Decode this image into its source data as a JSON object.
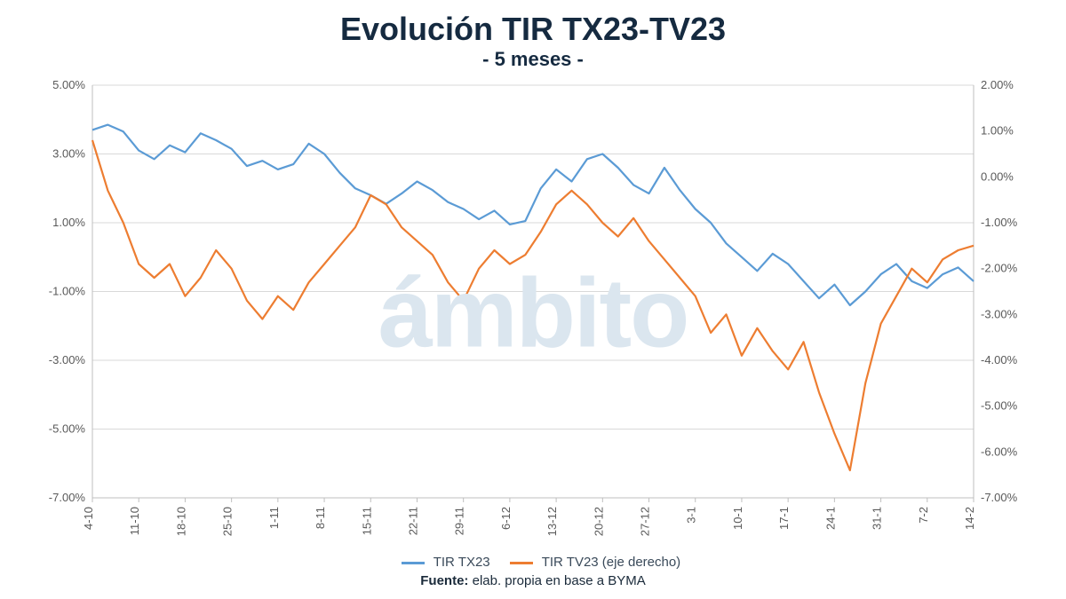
{
  "title": "Evolución TIR TX23-TV23",
  "subtitle": "- 5 meses -",
  "title_color": "#152a40",
  "title_fontsize": 36,
  "subtitle_fontsize": 22,
  "source_label": "Fuente:",
  "source_text": "elab. propia en base a BYMA",
  "watermark_text": "ámbito",
  "watermark_color": "#dbe6ef",
  "chart": {
    "type": "line-dual-axis",
    "background_color": "#ffffff",
    "grid_color": "#d9d9d9",
    "axis_color": "#bfbfbf",
    "tick_font_color": "#595959",
    "tick_fontsize": 13,
    "line_width": 2.2,
    "x_categories": [
      "4-10",
      "11-10",
      "18-10",
      "25-10",
      "1-11",
      "8-11",
      "15-11",
      "22-11",
      "29-11",
      "6-12",
      "13-12",
      "20-12",
      "27-12",
      "3-1",
      "10-1",
      "17-1",
      "24-1",
      "31-1",
      "7-2",
      "14-2"
    ],
    "x_tick_rotation": -90,
    "left_axis": {
      "label": "",
      "min": -7.0,
      "max": 5.0,
      "tick_step": 2.0,
      "tick_format_suffix": ".00%"
    },
    "right_axis": {
      "label": "",
      "min": -7.0,
      "max": 2.0,
      "tick_step": 1.0,
      "tick_format_suffix": ".00%"
    },
    "series": [
      {
        "name": "TIR TX23",
        "axis": "left",
        "color": "#5b9bd5",
        "values": [
          3.7,
          3.85,
          3.65,
          3.1,
          2.85,
          3.25,
          3.05,
          3.6,
          3.4,
          3.15,
          2.65,
          2.8,
          2.55,
          2.7,
          3.3,
          3.0,
          2.45,
          2.0,
          1.8,
          1.55,
          1.85,
          2.2,
          1.95,
          1.6,
          1.4,
          1.1,
          1.35,
          0.95,
          1.05,
          2.0,
          2.55,
          2.2,
          2.85,
          3.0,
          2.6,
          2.1,
          1.85,
          2.6,
          1.95,
          1.4,
          1.0,
          0.4,
          0.0,
          -0.4,
          0.1,
          -0.2,
          -0.7,
          -1.2,
          -0.8,
          -1.4,
          -1.0,
          -0.5,
          -0.2,
          -0.7,
          -0.9,
          -0.5,
          -0.3,
          -0.7
        ]
      },
      {
        "name": "TIR TV23 (eje derecho)",
        "axis": "right",
        "color": "#ed7d31",
        "values": [
          0.8,
          -0.3,
          -1.0,
          -1.9,
          -2.2,
          -1.9,
          -2.6,
          -2.2,
          -1.6,
          -2.0,
          -2.7,
          -3.1,
          -2.6,
          -2.9,
          -2.3,
          -1.9,
          -1.5,
          -1.1,
          -0.4,
          -0.6,
          -1.1,
          -1.4,
          -1.7,
          -2.3,
          -2.7,
          -2.0,
          -1.6,
          -1.9,
          -1.7,
          -1.2,
          -0.6,
          -0.3,
          -0.6,
          -1.0,
          -1.3,
          -0.9,
          -1.4,
          -1.8,
          -2.2,
          -2.6,
          -3.4,
          -3.0,
          -3.9,
          -3.3,
          -3.8,
          -4.2,
          -3.6,
          -4.7,
          -5.6,
          -6.4,
          -4.5,
          -3.2,
          -2.6,
          -2.0,
          -2.3,
          -1.8,
          -1.6,
          -1.5
        ]
      }
    ],
    "legend_position": "bottom"
  }
}
